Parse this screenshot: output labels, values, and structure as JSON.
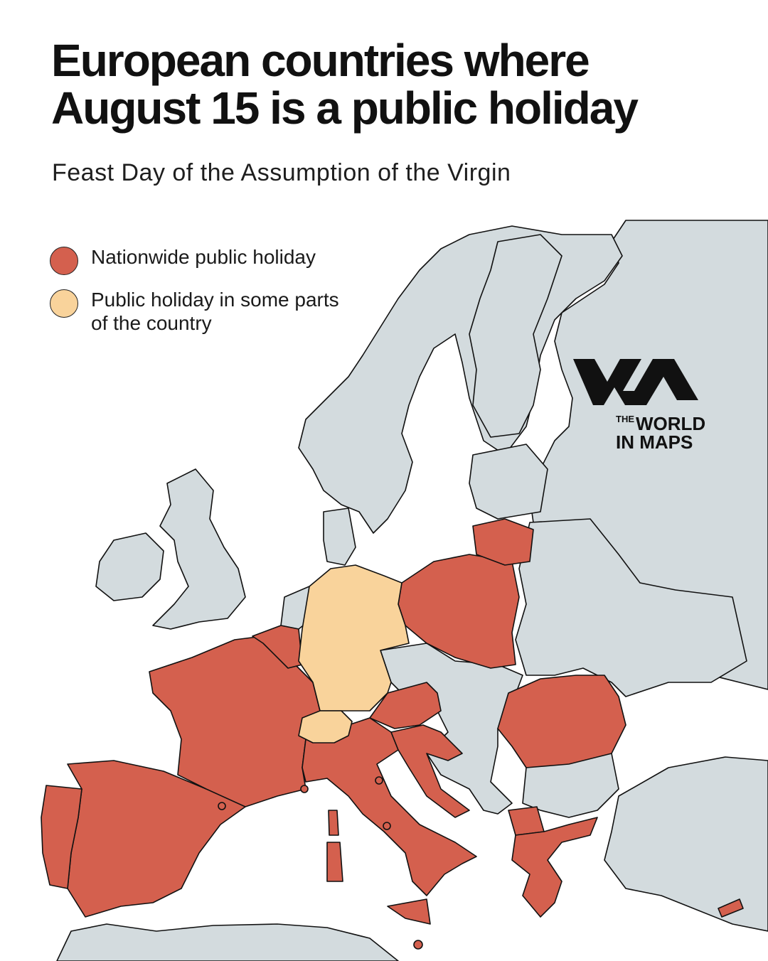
{
  "title": {
    "line1": "European countries where",
    "line2": "August 15 is a public holiday"
  },
  "subtitle": "Feast Day of the Assumption of the Virgin",
  "legend": [
    {
      "label": "Nationwide public holiday",
      "color": "#d4604e"
    },
    {
      "label": "Public holiday in some parts of the country",
      "color": "#f9d39b"
    }
  ],
  "logo": {
    "the": "THE",
    "world": "WORLD",
    "in_maps": "IN MAPS"
  },
  "colors": {
    "nationwide": "#d4604e",
    "partial": "#f9d39b",
    "other_land": "#d3dbde",
    "sea": "#ffffff",
    "border": "#111111"
  },
  "countries": {
    "nationwide": [
      "Spain",
      "Portugal",
      "France",
      "Belgium",
      "Luxembourg",
      "Italy",
      "Austria",
      "Poland",
      "Lithuania",
      "Romania",
      "Croatia",
      "Slovenia",
      "Greece",
      "North Macedonia",
      "Monaco",
      "San Marino",
      "Vatican City",
      "Andorra",
      "Malta",
      "Cyprus"
    ],
    "partial": [
      "Germany",
      "Switzerland"
    ]
  }
}
